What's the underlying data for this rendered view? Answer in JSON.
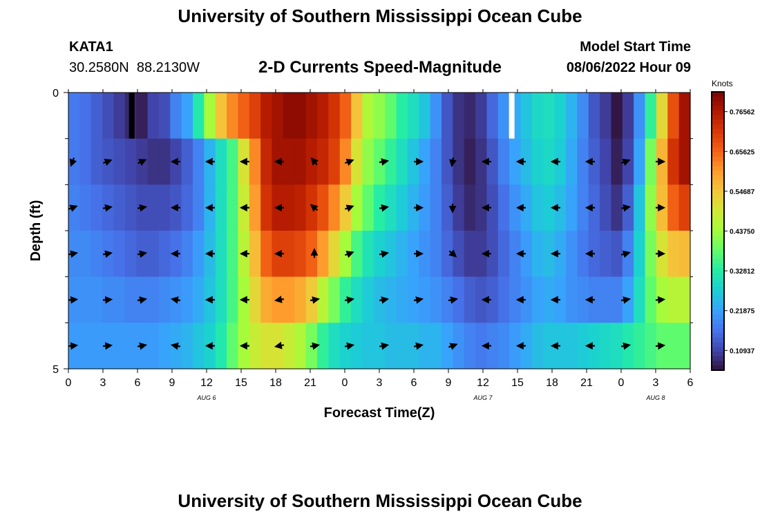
{
  "page_title": "University of Southern Mississippi Ocean Cube",
  "station": {
    "id": "KATA1",
    "lat": "30.2580N",
    "lon": "88.2130W"
  },
  "plot_title": "2-D Currents Speed-Magnitude",
  "model_start": {
    "label": "Model Start Time",
    "value": "08/06/2022 Hour 09"
  },
  "footer_title": "University of Southern Mississippi Ocean Cube",
  "chart_data": {
    "type": "heatmap",
    "title": "2-D Currents Speed-Magnitude",
    "xlabel": "Forecast Time(Z)",
    "ylabel": "Depth (ft)",
    "y_ticks": [
      "0",
      "5"
    ],
    "ylim": [
      0,
      5
    ],
    "x_tick_labels": [
      "0",
      "3",
      "6",
      "9",
      "12",
      "15",
      "18",
      "21",
      "0",
      "3",
      "6",
      "9",
      "12",
      "15",
      "18",
      "21",
      "0",
      "3",
      "6"
    ],
    "date_labels": [
      {
        "text": "AUG 6",
        "at_index": 4
      },
      {
        "text": "AUG 7",
        "at_index": 12
      },
      {
        "text": "AUG 8",
        "at_index": 17
      }
    ],
    "colorbar": {
      "unit_label": "Knots",
      "ticks": [
        "0.76562",
        "0.65625",
        "0.54687",
        "0.43750",
        "0.32812",
        "0.21875",
        "0.10937"
      ],
      "range": [
        0.055,
        0.82
      ],
      "colors": [
        "#30123b",
        "#4145ab",
        "#4675ed",
        "#39a2fc",
        "#1bcfd4",
        "#24eca6",
        "#61fc6c",
        "#a4fc3b",
        "#d1e834",
        "#f3c63a",
        "#fe9b2d",
        "#f36315",
        "#d93806",
        "#b11901",
        "#7a0402"
      ]
    },
    "depth_rows": 6,
    "time_hours": [
      0,
      1,
      2,
      3,
      4,
      5,
      6,
      7,
      8,
      9,
      10,
      11,
      12,
      13,
      14,
      15,
      16,
      17,
      18,
      19,
      20,
      21,
      22,
      23,
      24,
      25,
      26,
      27,
      28,
      29,
      30,
      31,
      32,
      33,
      34,
      35,
      36,
      37,
      38,
      39,
      40,
      41,
      42,
      43,
      44,
      45,
      46,
      47,
      48,
      49,
      50,
      51,
      52,
      53,
      54
    ],
    "speed_knots_by_depth": [
      [
        0.17,
        0.16,
        0.14,
        0.12,
        0.1,
        0.08,
        0.07,
        0.11,
        0.12,
        0.18,
        0.22,
        0.32,
        0.44,
        0.55,
        0.62,
        0.66,
        0.7,
        0.76,
        0.78,
        0.8,
        0.8,
        0.78,
        0.76,
        0.72,
        0.66,
        0.55,
        0.45,
        0.42,
        0.38,
        0.33,
        0.3,
        0.26,
        0.2,
        0.13,
        0.09,
        0.08,
        0.1,
        0.15,
        0.2,
        0.23,
        0.26,
        0.29,
        0.3,
        0.28,
        0.24,
        0.19,
        0.13,
        0.1,
        0.06,
        0.1,
        0.2,
        0.34,
        0.52,
        0.68,
        0.78
      ],
      [
        0.17,
        0.16,
        0.14,
        0.13,
        0.12,
        0.11,
        0.1,
        0.09,
        0.09,
        0.11,
        0.14,
        0.18,
        0.24,
        0.3,
        0.36,
        0.5,
        0.62,
        0.74,
        0.78,
        0.78,
        0.78,
        0.76,
        0.74,
        0.7,
        0.62,
        0.5,
        0.42,
        0.38,
        0.34,
        0.3,
        0.26,
        0.22,
        0.18,
        0.13,
        0.09,
        0.07,
        0.09,
        0.13,
        0.18,
        0.22,
        0.25,
        0.28,
        0.29,
        0.27,
        0.23,
        0.18,
        0.14,
        0.11,
        0.07,
        0.11,
        0.22,
        0.4,
        0.57,
        0.72,
        0.78
      ],
      [
        0.18,
        0.17,
        0.16,
        0.15,
        0.14,
        0.13,
        0.12,
        0.12,
        0.12,
        0.13,
        0.15,
        0.18,
        0.24,
        0.3,
        0.36,
        0.48,
        0.6,
        0.72,
        0.76,
        0.76,
        0.75,
        0.72,
        0.68,
        0.62,
        0.54,
        0.44,
        0.38,
        0.33,
        0.3,
        0.27,
        0.24,
        0.21,
        0.18,
        0.14,
        0.1,
        0.08,
        0.09,
        0.12,
        0.16,
        0.2,
        0.23,
        0.26,
        0.27,
        0.25,
        0.22,
        0.18,
        0.15,
        0.12,
        0.09,
        0.14,
        0.26,
        0.42,
        0.56,
        0.66,
        0.7
      ],
      [
        0.19,
        0.19,
        0.18,
        0.17,
        0.16,
        0.15,
        0.14,
        0.14,
        0.15,
        0.16,
        0.18,
        0.21,
        0.25,
        0.3,
        0.36,
        0.46,
        0.56,
        0.66,
        0.7,
        0.7,
        0.69,
        0.66,
        0.6,
        0.52,
        0.44,
        0.36,
        0.31,
        0.28,
        0.26,
        0.24,
        0.22,
        0.2,
        0.18,
        0.15,
        0.12,
        0.1,
        0.1,
        0.12,
        0.15,
        0.18,
        0.21,
        0.24,
        0.25,
        0.23,
        0.2,
        0.17,
        0.15,
        0.14,
        0.13,
        0.18,
        0.28,
        0.4,
        0.5,
        0.55,
        0.56
      ],
      [
        0.2,
        0.2,
        0.2,
        0.19,
        0.19,
        0.18,
        0.18,
        0.18,
        0.19,
        0.2,
        0.21,
        0.23,
        0.26,
        0.3,
        0.36,
        0.44,
        0.52,
        0.58,
        0.6,
        0.6,
        0.58,
        0.54,
        0.46,
        0.4,
        0.34,
        0.3,
        0.27,
        0.25,
        0.24,
        0.23,
        0.22,
        0.21,
        0.2,
        0.18,
        0.16,
        0.14,
        0.13,
        0.14,
        0.16,
        0.18,
        0.2,
        0.22,
        0.23,
        0.22,
        0.2,
        0.19,
        0.18,
        0.18,
        0.18,
        0.22,
        0.3,
        0.38,
        0.44,
        0.46,
        0.46
      ],
      [
        0.21,
        0.21,
        0.21,
        0.21,
        0.21,
        0.21,
        0.21,
        0.21,
        0.22,
        0.23,
        0.24,
        0.26,
        0.28,
        0.32,
        0.38,
        0.44,
        0.48,
        0.5,
        0.5,
        0.48,
        0.45,
        0.4,
        0.34,
        0.3,
        0.28,
        0.27,
        0.26,
        0.26,
        0.25,
        0.25,
        0.25,
        0.24,
        0.24,
        0.22,
        0.2,
        0.18,
        0.17,
        0.18,
        0.19,
        0.21,
        0.23,
        0.25,
        0.26,
        0.26,
        0.26,
        0.27,
        0.28,
        0.29,
        0.3,
        0.32,
        0.34,
        0.36,
        0.38,
        0.38,
        0.38
      ]
    ],
    "missing_cells": [
      {
        "hour": 5.5,
        "depth_row": 0,
        "color": "#000000"
      },
      {
        "hour": 38.5,
        "depth_row": 0,
        "color": "#ffffff"
      }
    ],
    "vector_hours": [
      0,
      3,
      6,
      9,
      12,
      15,
      18,
      21,
      24,
      27,
      30,
      33,
      36,
      39,
      42,
      45,
      48,
      51
    ],
    "vector_depth_rows": [
      0,
      1,
      2,
      3,
      4,
      5
    ],
    "vector_directions_deg": [
      [
        null,
        null,
        null,
        null,
        null,
        null,
        null,
        null,
        null,
        null,
        null,
        null,
        null,
        null,
        null,
        null,
        null,
        null
      ],
      [
        250,
        20,
        25,
        180,
        180,
        180,
        180,
        130,
        20,
        10,
        0,
        260,
        180,
        180,
        180,
        180,
        20,
        0
      ],
      [
        20,
        10,
        10,
        180,
        180,
        180,
        180,
        140,
        20,
        10,
        0,
        270,
        180,
        180,
        180,
        180,
        10,
        0
      ],
      [
        10,
        10,
        10,
        180,
        180,
        180,
        180,
        90,
        20,
        10,
        0,
        320,
        180,
        180,
        180,
        180,
        15,
        0
      ],
      [
        5,
        5,
        10,
        170,
        180,
        180,
        190,
        10,
        10,
        10,
        10,
        10,
        180,
        180,
        180,
        180,
        10,
        5
      ],
      [
        5,
        5,
        10,
        170,
        180,
        180,
        190,
        10,
        10,
        10,
        10,
        20,
        180,
        180,
        180,
        180,
        10,
        5
      ]
    ]
  }
}
